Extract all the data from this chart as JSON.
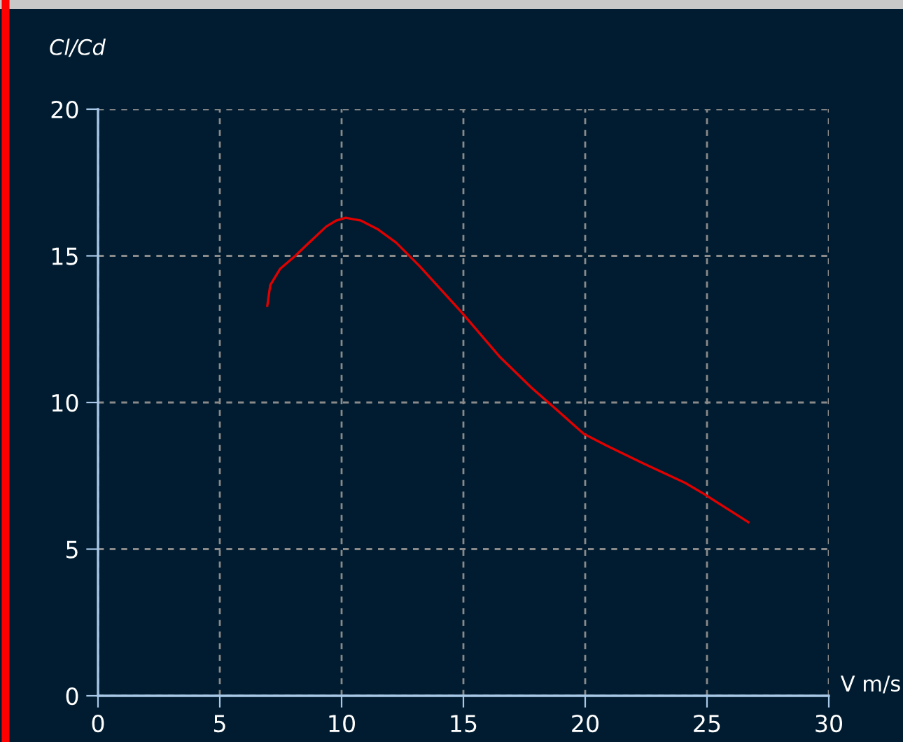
{
  "chart_data": {
    "type": "line",
    "xlabel": "V m/s",
    "ylabel": "Cl/Cd",
    "x": [
      6.95,
      7.07,
      7.47,
      8.1,
      8.6,
      9.37,
      9.77,
      10.17,
      10.8,
      11.5,
      12.24,
      13.2,
      14.9,
      16.5,
      17.8,
      18.85,
      19.94,
      20.86,
      22.4,
      24.1,
      24.9,
      26.7
    ],
    "series": [
      {
        "color": "#e00000",
        "values": [
          13.3,
          14.0,
          14.55,
          15.0,
          15.4,
          16.0,
          16.2,
          16.3,
          16.2,
          15.9,
          15.45,
          14.65,
          13.1,
          11.55,
          10.5,
          9.74,
          8.93,
          8.54,
          7.92,
          7.26,
          6.87,
          5.92
        ]
      }
    ],
    "xlim": [
      0,
      30
    ],
    "xticks": [
      0,
      5,
      10,
      15,
      20,
      25,
      30
    ],
    "ylim": [
      0,
      20
    ],
    "yticks": [
      0,
      5,
      10,
      15,
      20
    ],
    "grid": true,
    "legend": false,
    "marker": "none",
    "line_style": "solid"
  }
}
